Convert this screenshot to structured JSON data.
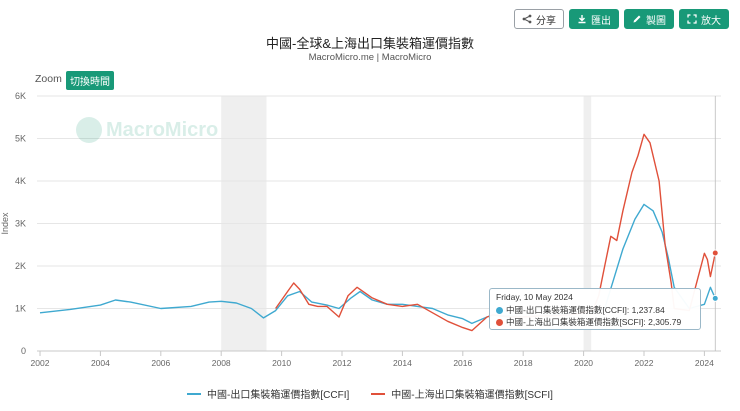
{
  "toolbar": {
    "share_label": "分享",
    "export_label": "匯出",
    "embed_label": "製圖",
    "expand_label": "放大"
  },
  "watermark_text": "MacroMicro",
  "zoom": {
    "label": "Zoom",
    "toggle_label": "切換時間"
  },
  "tooltip": {
    "date": "Friday, 10 May 2024",
    "ccfi_line": "中國-出口集裝箱運價指數[CCFI]: 1,237.84",
    "scfi_line": "中國-上海出口集裝箱運價指數[SCFI]: 2,305.79"
  },
  "colors": {
    "accent": "#189978",
    "ccfi": "#3fa9d0",
    "scfi": "#e0503a"
  },
  "chart_data": {
    "type": "line",
    "title": "中國-全球&上海出口集裝箱運價指數",
    "subtitle": "MacroMicro.me | MacroMicro",
    "xlabel": "",
    "ylabel": "Index",
    "xlim": [
      2001.9,
      2024.55
    ],
    "ylim": [
      0,
      6000
    ],
    "x_ticks": [
      "2002",
      "2004",
      "2006",
      "2008",
      "2010",
      "2012",
      "2014",
      "2016",
      "2018",
      "2020",
      "2022",
      "2024"
    ],
    "y_ticks": [
      "0",
      "1K",
      "2K",
      "3K",
      "4K",
      "5K",
      "6K"
    ],
    "grid": "horizontal",
    "legend_position": "bottom",
    "recession_bands": [
      [
        2008.0,
        2009.5
      ],
      [
        2020.0,
        2020.25
      ]
    ],
    "series": [
      {
        "name": "中國-出口集裝箱運價指數[CCFI]",
        "x": [
          2002,
          2003,
          2004,
          2004.5,
          2005,
          2006,
          2007,
          2007.6,
          2008,
          2008.5,
          2009,
          2009.4,
          2009.8,
          2010.2,
          2010.6,
          2011,
          2011.5,
          2011.9,
          2012.3,
          2012.6,
          2013,
          2013.5,
          2014,
          2014.5,
          2015,
          2015.5,
          2016,
          2016.3,
          2016.8,
          2017,
          2017.5,
          2018,
          2018.5,
          2019,
          2019.5,
          2020,
          2020.4,
          2020.7,
          2021,
          2021.3,
          2021.7,
          2022,
          2022.3,
          2022.6,
          2022.8,
          2023,
          2023.5,
          2024,
          2024.2,
          2024.36
        ],
        "values": [
          900,
          980,
          1080,
          1200,
          1150,
          1000,
          1050,
          1150,
          1170,
          1130,
          1000,
          780,
          950,
          1300,
          1400,
          1150,
          1080,
          1000,
          1250,
          1400,
          1200,
          1100,
          1100,
          1050,
          1000,
          850,
          760,
          650,
          800,
          850,
          830,
          800,
          830,
          850,
          870,
          900,
          920,
          1000,
          1700,
          2400,
          3100,
          3450,
          3300,
          2800,
          2200,
          1500,
          1000,
          1100,
          1500,
          1237.84
        ]
      },
      {
        "name": "中國-上海出口集裝箱運價指數[SCFI]",
        "x": [
          2009.8,
          2010.2,
          2010.4,
          2010.6,
          2010.9,
          2011.2,
          2011.5,
          2011.9,
          2012.2,
          2012.5,
          2013,
          2013.5,
          2014,
          2014.5,
          2015,
          2015.5,
          2016,
          2016.3,
          2016.8,
          2017,
          2017.5,
          2018,
          2018.5,
          2019,
          2019.5,
          2020,
          2020.3,
          2020.5,
          2020.7,
          2020.9,
          2021.1,
          2021.3,
          2021.6,
          2021.8,
          2022,
          2022.2,
          2022.5,
          2022.7,
          2022.9,
          2023,
          2023.5,
          2024,
          2024.1,
          2024.2,
          2024.36
        ],
        "values": [
          1000,
          1400,
          1600,
          1450,
          1100,
          1050,
          1050,
          800,
          1300,
          1500,
          1250,
          1100,
          1050,
          1100,
          900,
          700,
          550,
          480,
          800,
          850,
          800,
          800,
          820,
          830,
          850,
          900,
          950,
          1300,
          2000,
          2700,
          2600,
          3300,
          4200,
          4600,
          5100,
          4900,
          4000,
          2500,
          1600,
          1000,
          950,
          2300,
          2150,
          1750,
          2305.79
        ]
      }
    ]
  }
}
